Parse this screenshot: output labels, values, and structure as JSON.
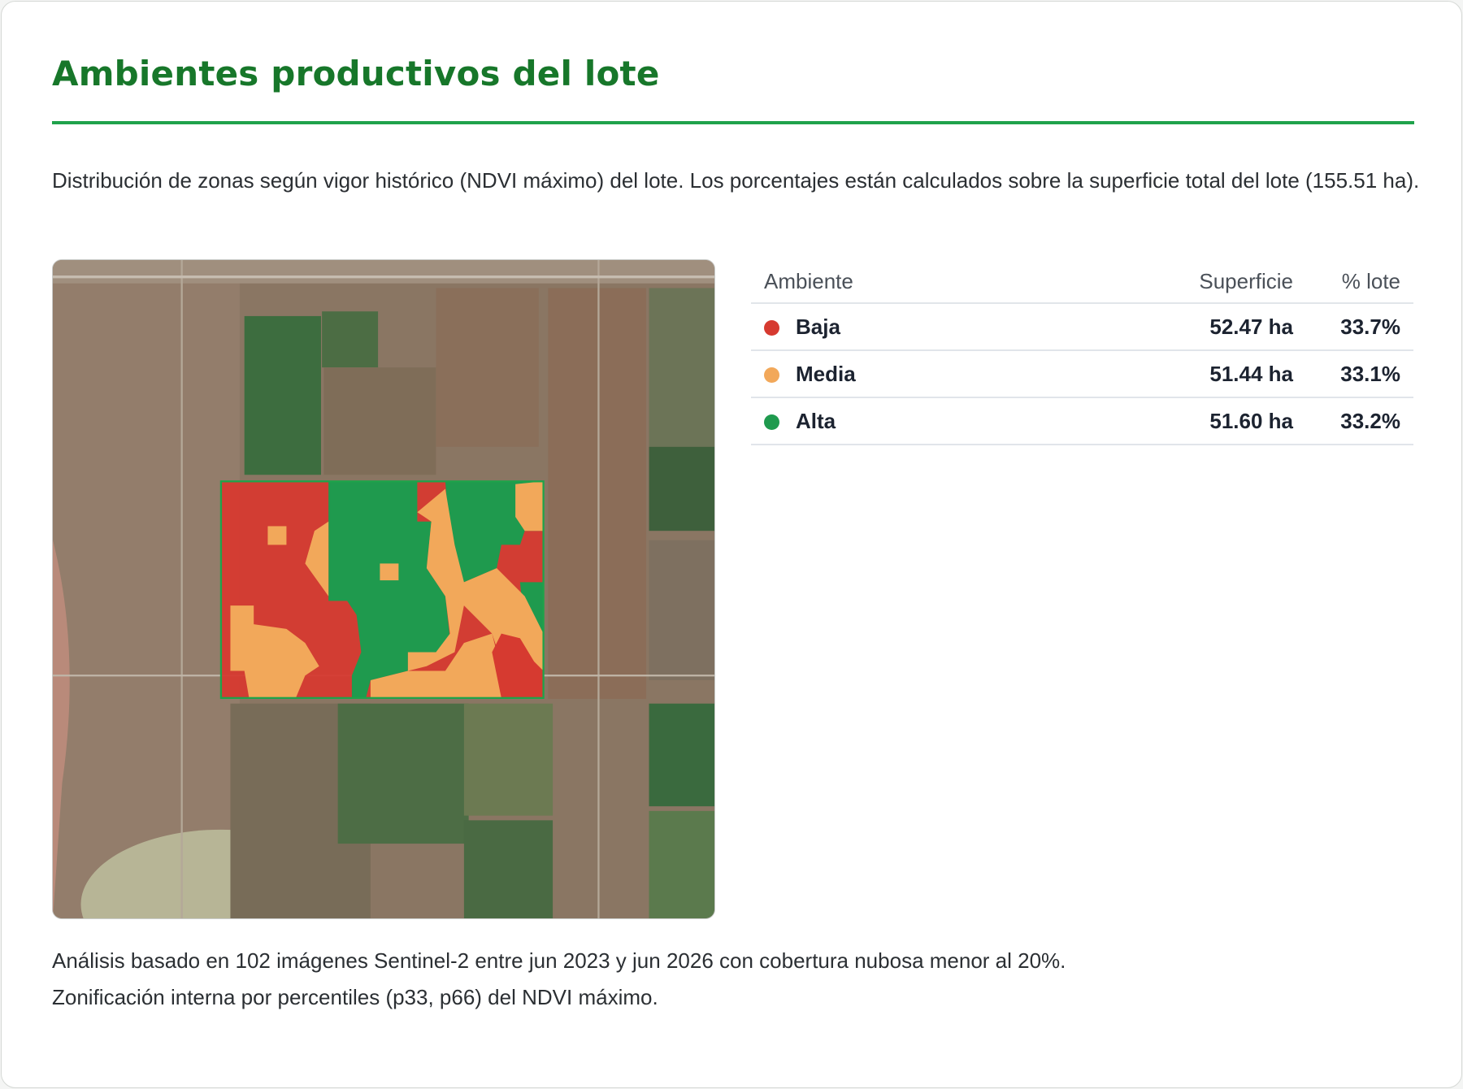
{
  "header": {
    "title": "Ambientes productivos del lote"
  },
  "description": "Distribución de zonas según vigor histórico (NDVI máximo) del lote. Los porcentajes están calculados sobre la superficie total del lote (155.51 ha).",
  "table": {
    "columns": [
      "Ambiente",
      "Superficie",
      "% lote"
    ],
    "rows": [
      {
        "name": "Baja",
        "area": "52.47 ha",
        "pct": "33.7%",
        "color": "#d63a30"
      },
      {
        "name": "Media",
        "area": "51.44 ha",
        "pct": "33.1%",
        "color": "#f2a85a"
      },
      {
        "name": "Alta",
        "area": "51.60 ha",
        "pct": "33.2%",
        "color": "#1f9a4e"
      }
    ]
  },
  "footer": [
    "Análisis basado en 102 imágenes Sentinel-2 entre jun 2023 y jun 2026 con cobertura nubosa menor al 20%.",
    "Zonificación interna por percentiles (p33, p66) del NDVI máximo."
  ]
}
